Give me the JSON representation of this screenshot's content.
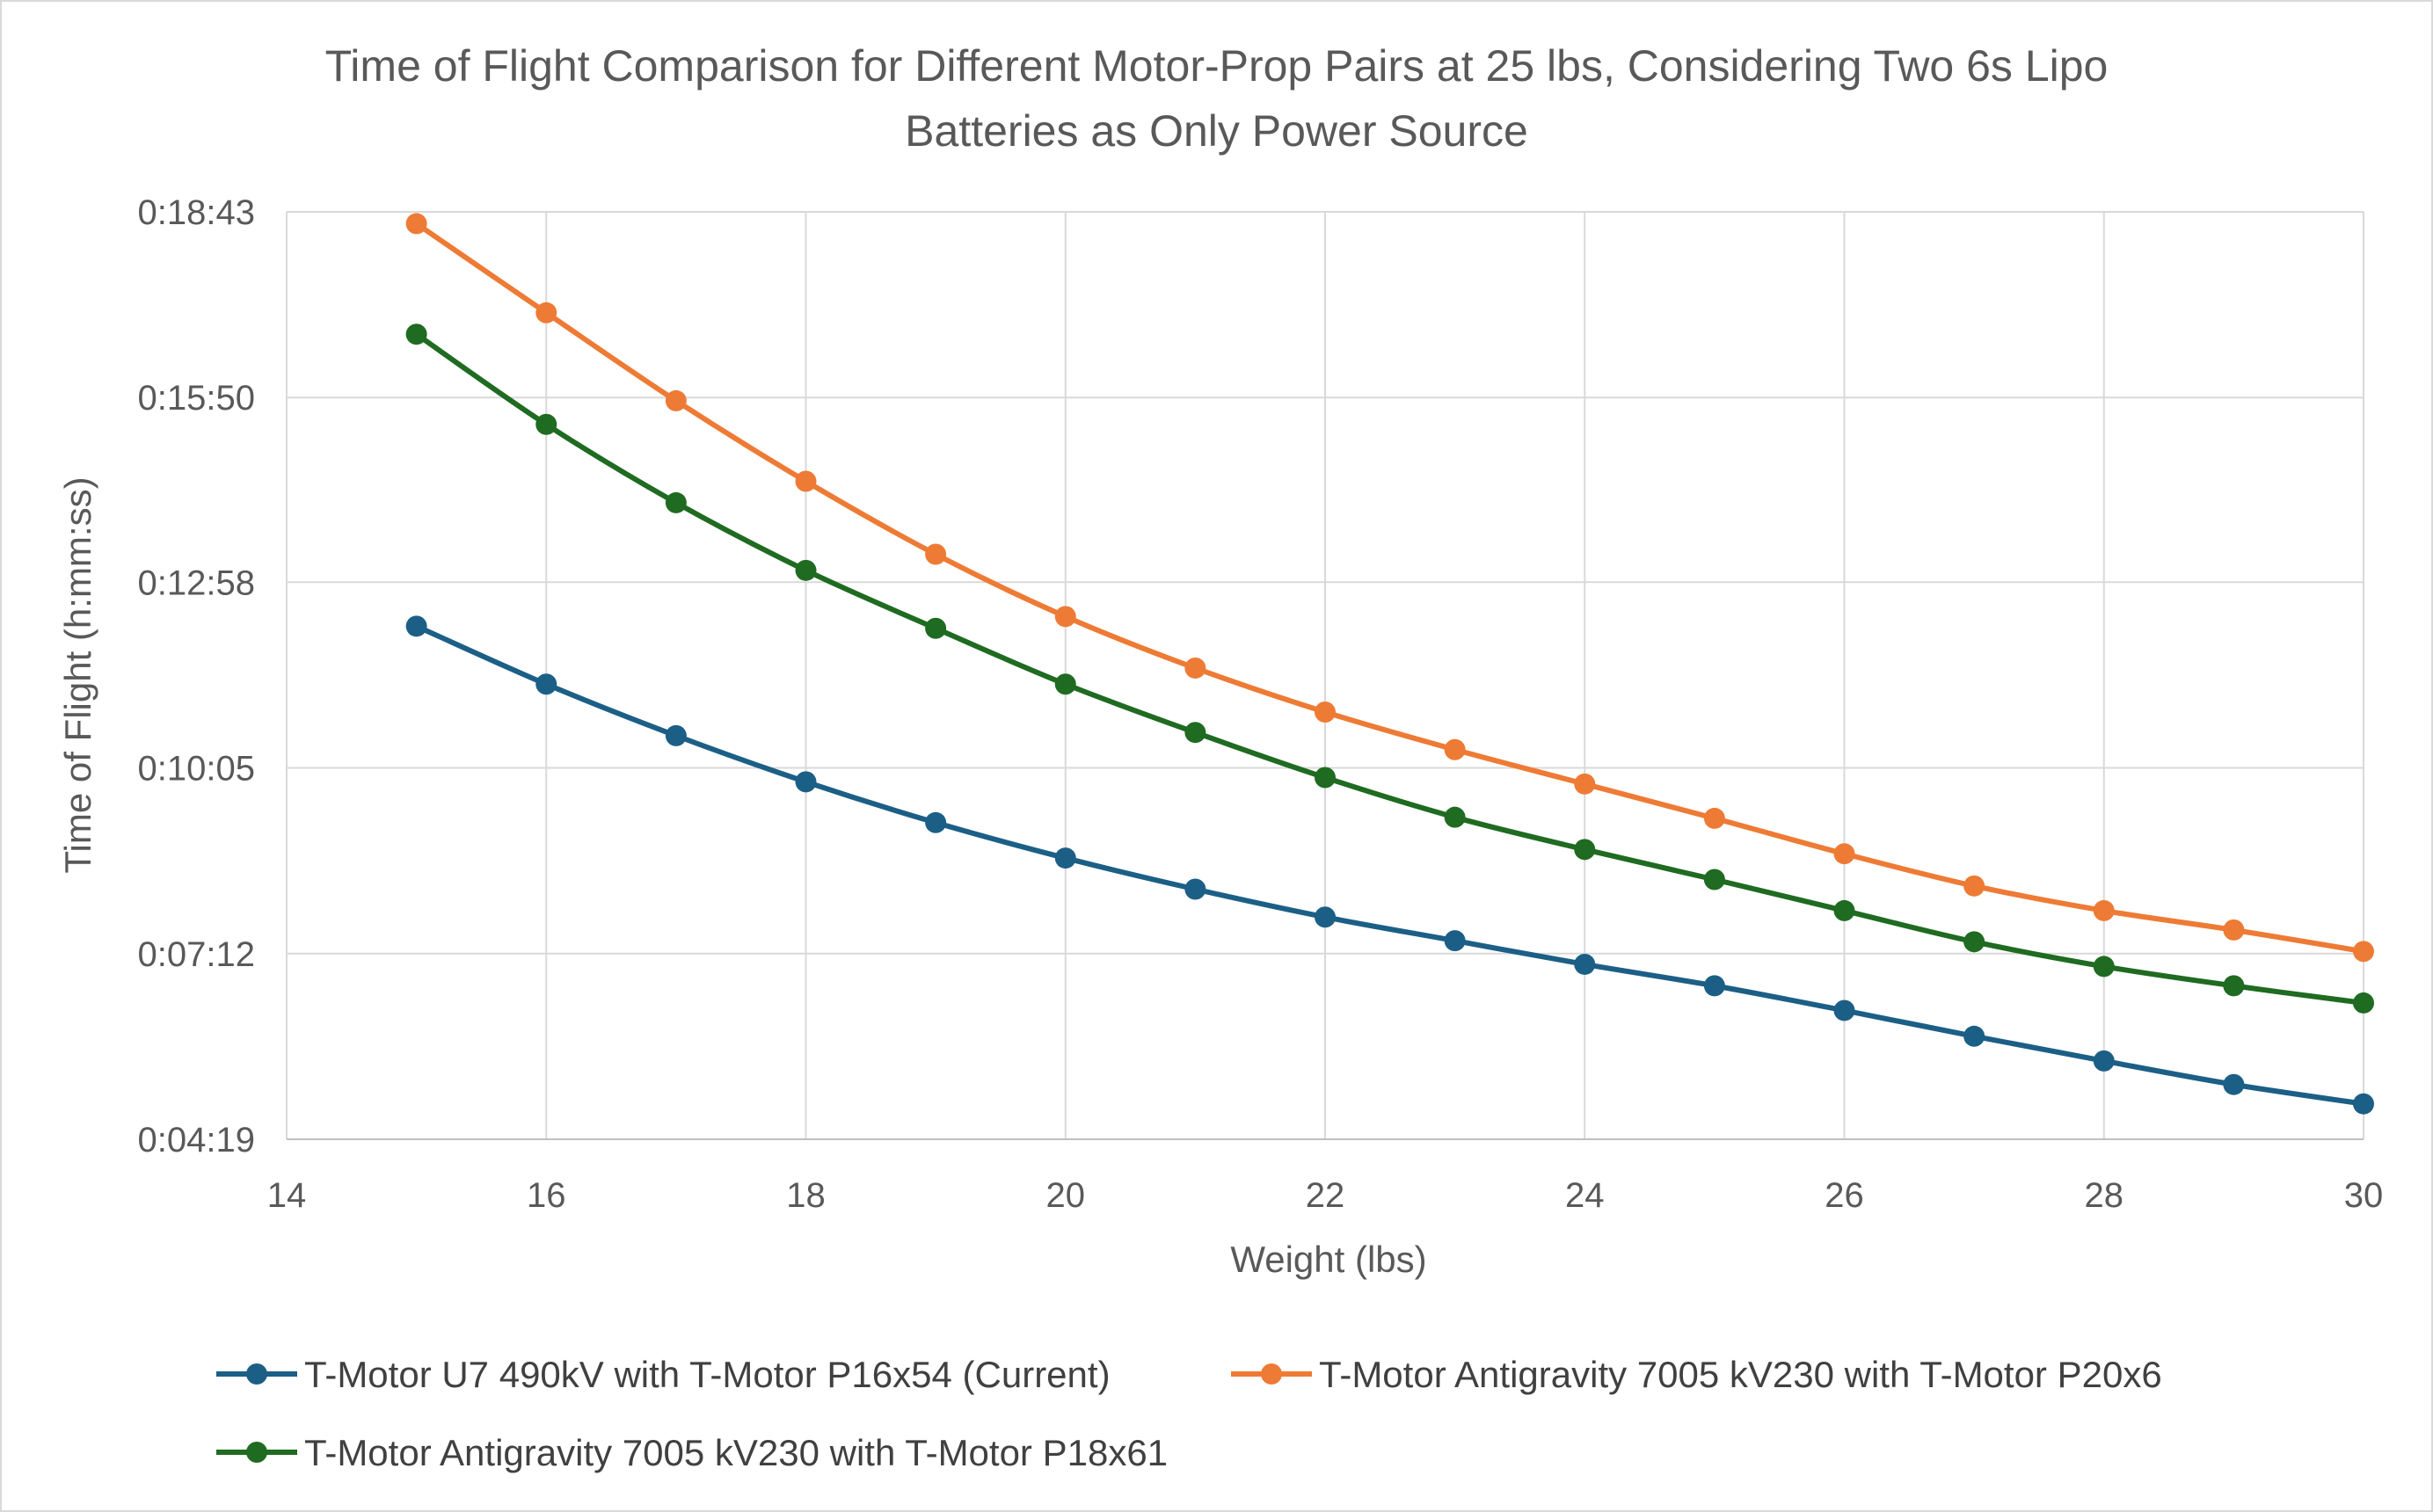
{
  "chart_data": {
    "type": "line",
    "title_line1": "Time of Flight Comparison for Different Motor-Prop Pairs at 25 lbs, Considering Two 6s Lipo",
    "title_line2": "Batteries as Only Power Source",
    "xlabel": "Weight (lbs)",
    "ylabel": "Time of Flight (h:mm:ss)",
    "xlim": [
      14,
      30
    ],
    "x_ticks": [
      "14",
      "16",
      "18",
      "20",
      "22",
      "24",
      "26",
      "28",
      "30"
    ],
    "ylim_seconds": [
      259,
      1123
    ],
    "y_ticks": [
      "0:04:19",
      "0:07:12",
      "0:10:05",
      "0:12:58",
      "0:15:50",
      "0:18:43"
    ],
    "grid": true,
    "legend_position": "bottom",
    "x": [
      15,
      16,
      17,
      18,
      19,
      20,
      21,
      22,
      23,
      24,
      25,
      26,
      27,
      28,
      29,
      30
    ],
    "series": [
      {
        "name": "T-Motor U7 490kV with T-Motor P16x54 (Current)",
        "color": "#1c5f86",
        "values_seconds": [
          737,
          683,
          635,
          592,
          554,
          521,
          492,
          466,
          444,
          422,
          402,
          379,
          355,
          332,
          310,
          292
        ]
      },
      {
        "name": "T-Motor Antigravity 7005 kV230 with T-Motor P20x6",
        "color": "#ee7b35",
        "values_seconds": [
          1112,
          1029,
          947,
          872,
          804,
          746,
          698,
          657,
          622,
          590,
          558,
          525,
          495,
          472,
          454,
          434
        ]
      },
      {
        "name": "T-Motor Antigravity 7005 kV230 with T-Motor P18x61",
        "color": "#1f6b21",
        "values_seconds": [
          1009,
          925,
          852,
          789,
          735,
          683,
          638,
          596,
          559,
          529,
          501,
          472,
          443,
          420,
          402,
          386
        ]
      }
    ]
  }
}
